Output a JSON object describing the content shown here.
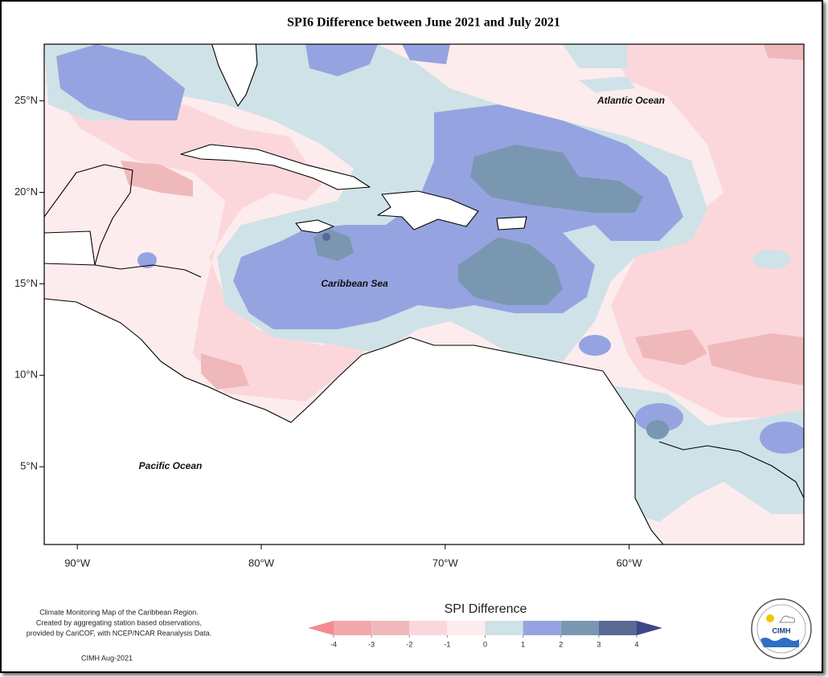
{
  "title": "SPI6 Difference between June 2021 and July 2021",
  "map": {
    "xlim": [
      -91.8,
      -50.5
    ],
    "ylim": [
      0.75,
      28.1
    ],
    "xticks": [
      {
        "value": -90,
        "label": "90°W"
      },
      {
        "value": -80,
        "label": "80°W"
      },
      {
        "value": -70,
        "label": "70°W"
      },
      {
        "value": -60,
        "label": "60°W"
      }
    ],
    "yticks": [
      {
        "value": 25,
        "label": "25°N"
      },
      {
        "value": 20,
        "label": "20°N"
      },
      {
        "value": 15,
        "label": "15°N"
      },
      {
        "value": 10,
        "label": "10°N"
      },
      {
        "value": 5,
        "label": "5°N"
      }
    ],
    "places": [
      "Atlantic Ocean",
      "Caribbean Sea",
      "Pacific Ocean"
    ]
  },
  "legend": {
    "title": "SPI Difference",
    "ticks": [
      -4,
      -3,
      -2,
      -1,
      0,
      1,
      2,
      3,
      4
    ],
    "colors": [
      "#f48a92",
      "#f3a7ac",
      "#efb9bc",
      "#fbd7db",
      "#fdeced",
      "#cfe2e7",
      "#95a4e0",
      "#7a97b2",
      "#5a6893",
      "#3c4688"
    ]
  },
  "notes": [
    "Climate Monitoring Map of the Caribbean Region.",
    "Created by aggregating station based observations,",
    "provided by CariCOF, with NCEP/NCAR Reanalysis Data."
  ],
  "credit": "CIMH Aug-2021",
  "logo": "CIMH"
}
